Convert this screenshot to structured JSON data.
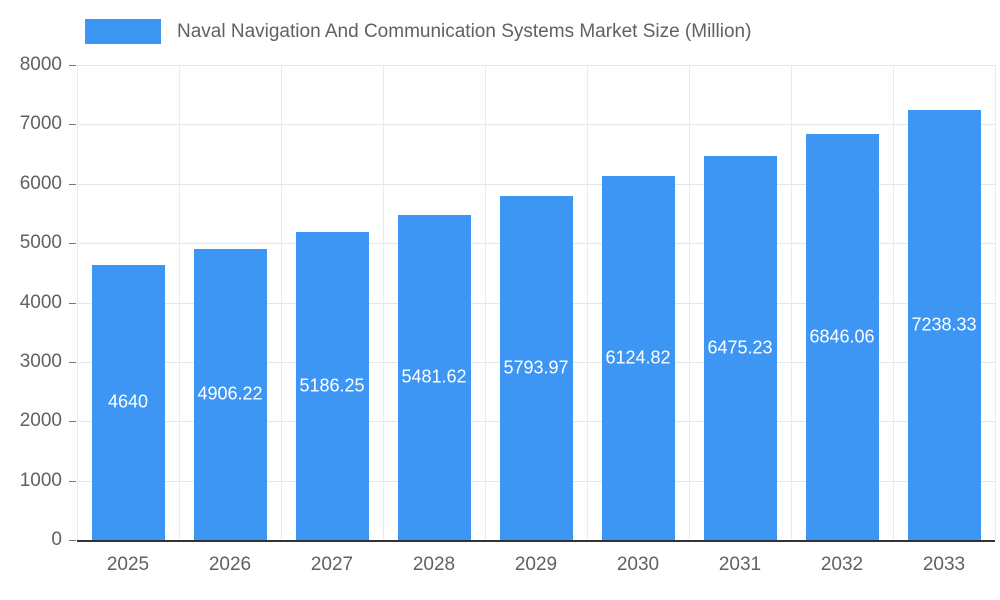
{
  "chart_data": {
    "type": "bar",
    "title": "Naval Navigation And Communication Systems Market Size (Million)",
    "categories": [
      "2025",
      "2026",
      "2027",
      "2028",
      "2029",
      "2030",
      "2031",
      "2032",
      "2033"
    ],
    "values": [
      4640,
      4906.22,
      5186.25,
      5481.62,
      5793.97,
      6124.82,
      6475.23,
      6846.06,
      7238.33
    ],
    "value_labels": [
      "4640",
      "4906.22",
      "5186.25",
      "5481.62",
      "5793.97",
      "6124.82",
      "6475.23",
      "6846.06",
      "7238.33"
    ],
    "xlabel": "",
    "ylabel": "",
    "ylim": [
      0,
      8000
    ],
    "ytick_step": 1000,
    "ytick_labels": [
      "0",
      "1000",
      "2000",
      "3000",
      "4000",
      "5000",
      "6000",
      "7000",
      "8000"
    ],
    "bar_color": "#3d96f4",
    "value_label_color": "#ffffff",
    "axis_text_color": "#616161",
    "grid": true,
    "legend_position": "top"
  }
}
